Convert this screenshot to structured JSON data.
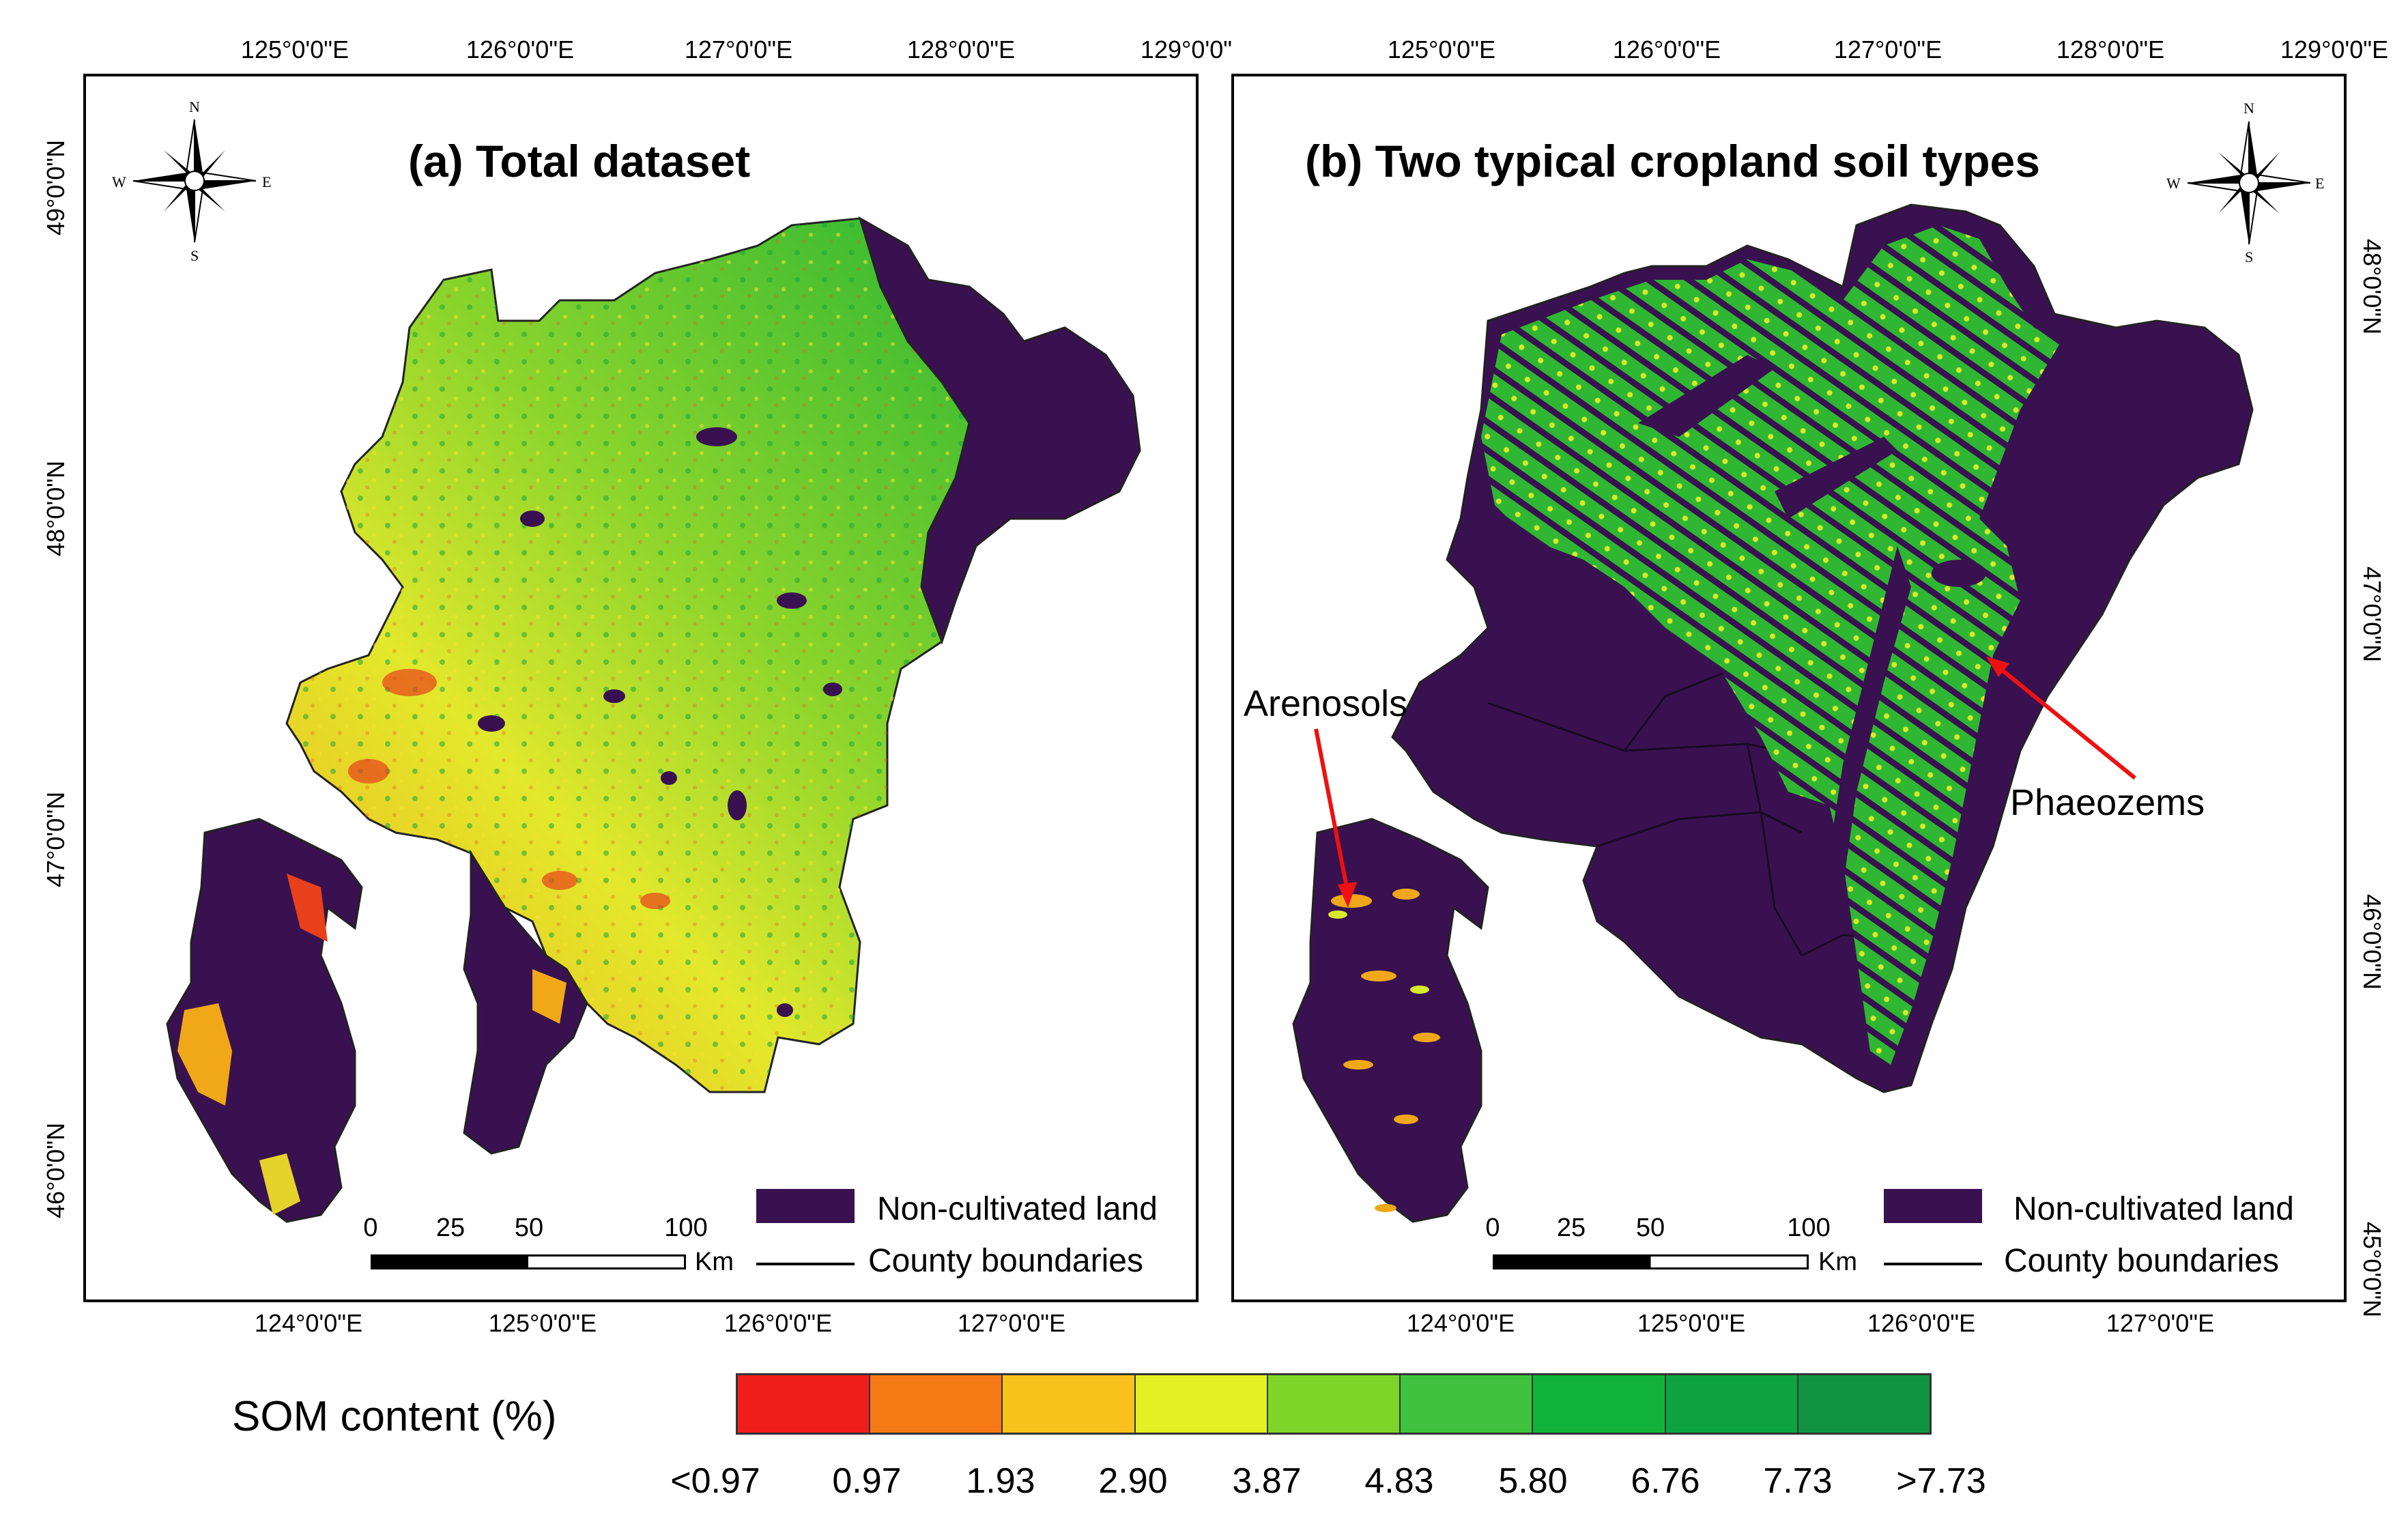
{
  "panel_a": {
    "title": "(a)  Total dataset",
    "top_ticks": [
      "125°0'0\"E",
      "126°0'0\"E",
      "127°0'0\"E",
      "128°0'0\"E",
      "129°0'0\""
    ],
    "bottom_ticks": [
      "124°0'0\"E",
      "125°0'0\"E",
      "126°0'0\"E",
      "127°0'0\"E"
    ],
    "left_ticks": [
      "49°0'0\"N",
      "48°0'0\"N",
      "47°0'0\"N",
      "46°0'0\"N"
    ],
    "legend_noncultivated": "Non-cultivated land",
    "legend_county": "County boundaries",
    "scale_labels": [
      "0",
      "25",
      "50",
      "100"
    ],
    "scale_unit": "Km"
  },
  "panel_b": {
    "title": "(b) Two typical cropland soil types",
    "top_ticks": [
      "125°0'0\"E",
      "126°0'0\"E",
      "127°0'0\"E",
      "128°0'0\"E",
      "129°0'0\"E"
    ],
    "bottom_ticks": [
      "124°0'0\"E",
      "125°0'0\"E",
      "126°0'0\"E",
      "127°0'0\"E"
    ],
    "right_ticks": [
      "48°0'0\"N",
      "47°0'0\"N",
      "46°0'0\"N",
      "45°0'0\"N"
    ],
    "legend_noncultivated": "Non-cultivated land",
    "legend_county": "County boundaries",
    "scale_labels": [
      "0",
      "25",
      "50",
      "100"
    ],
    "scale_unit": "Km",
    "annotation_arenosols": "Arenosols",
    "annotation_phaeozems": "Phaeozems"
  },
  "compass": {
    "n": "N",
    "s": "S",
    "e": "E",
    "w": "W"
  },
  "colorbar": {
    "title": "SOM content (%)",
    "labels": [
      "<0.97",
      "0.97",
      "1.93",
      "2.90",
      "3.87",
      "4.83",
      "5.80",
      "6.76",
      "7.73",
      ">7.73"
    ],
    "colors": [
      "#f01d1d",
      "#f57a15",
      "#f9c21c",
      "#e2f024",
      "#7fd42a",
      "#3fc23f",
      "#12b33a",
      "#0da43f",
      "#119440"
    ]
  },
  "colors": {
    "noncultivated": "#3a1150",
    "green": "#43c02d",
    "yellow": "#d9ea2a",
    "orange": "#f0a818",
    "red": "#e8401a"
  }
}
